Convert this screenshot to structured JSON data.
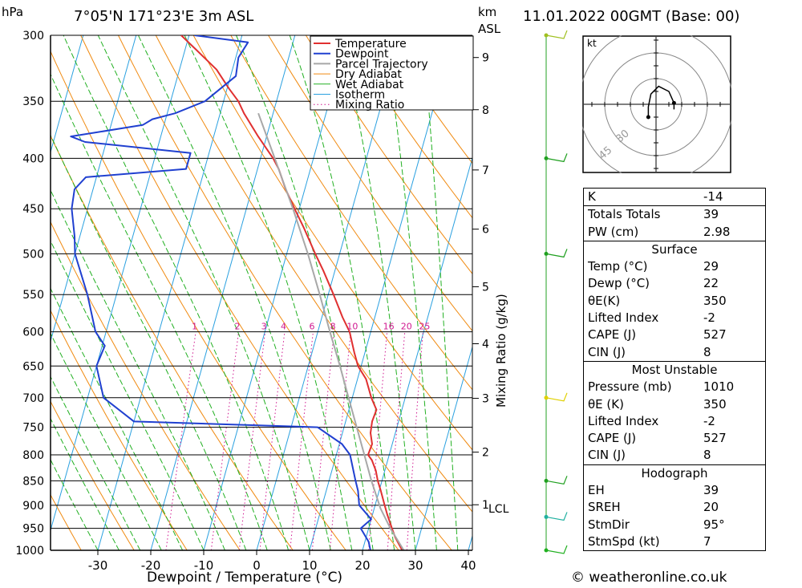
{
  "header": {
    "pressure_unit": "hPa",
    "location": "7°05'N 171°23'E 3m ASL",
    "height_unit_line1": "km",
    "height_unit_line2": "ASL",
    "datetime": "11.01.2022 00GMT (Base: 00)"
  },
  "chart_data": {
    "type": "line",
    "xlabel": "Dewpoint / Temperature (°C)",
    "ylabel": "hPa",
    "right_axis_label": "Mixing Ratio (g/kg)",
    "xlim": [
      -40,
      40
    ],
    "ylim": [
      1000,
      300
    ],
    "x_ticks": [
      "-30",
      "-20",
      "-10",
      "0",
      "10",
      "20",
      "30",
      "40"
    ],
    "pressure_levels": [
      300,
      350,
      400,
      450,
      500,
      550,
      600,
      650,
      700,
      750,
      800,
      850,
      900,
      950,
      1000
    ],
    "height_km": [
      {
        "label": "9",
        "p": 316
      },
      {
        "label": "8",
        "p": 357
      },
      {
        "label": "7",
        "p": 411
      },
      {
        "label": "6",
        "p": 472
      },
      {
        "label": "5",
        "p": 540
      },
      {
        "label": "4",
        "p": 617
      },
      {
        "label": "3",
        "p": 701
      },
      {
        "label": "2",
        "p": 795
      },
      {
        "label": "1",
        "p": 899
      }
    ],
    "lcl": {
      "label": "LCL",
      "p": 907
    },
    "mixing_ratio_labels": [
      "1",
      "2",
      "3",
      "4",
      "6",
      "8",
      "10",
      "16",
      "20",
      "25"
    ],
    "mixing_ratio_values": [
      1,
      2,
      3,
      4,
      6,
      8,
      10,
      16,
      20,
      25
    ],
    "legend": [
      "Temperature",
      "Dewpoint",
      "Parcel Trajectory",
      "Dry Adiabat",
      "Wet Adiabat",
      "Isotherm",
      "Mixing Ratio"
    ],
    "series": [
      {
        "name": "Temperature",
        "color": "#e03030",
        "points": [
          [
            1000,
            27.5
          ],
          [
            970,
            25.5
          ],
          [
            950,
            24.4
          ],
          [
            920,
            22.8
          ],
          [
            900,
            21.8
          ],
          [
            870,
            20.3
          ],
          [
            850,
            19.2
          ],
          [
            830,
            18.3
          ],
          [
            810,
            17.0
          ],
          [
            800,
            16.0
          ],
          [
            780,
            16.2
          ],
          [
            760,
            15.3
          ],
          [
            740,
            15.0
          ],
          [
            720,
            15.2
          ],
          [
            700,
            13.6
          ],
          [
            670,
            11.6
          ],
          [
            650,
            9.4
          ],
          [
            630,
            8.0
          ],
          [
            600,
            6.0
          ],
          [
            580,
            3.9
          ],
          [
            550,
            1.0
          ],
          [
            520,
            -2.2
          ],
          [
            500,
            -4.6
          ],
          [
            470,
            -8.2
          ],
          [
            450,
            -10.9
          ],
          [
            430,
            -13.6
          ],
          [
            410,
            -16.0
          ],
          [
            400,
            -17.6
          ],
          [
            380,
            -21.6
          ],
          [
            360,
            -25.5
          ],
          [
            350,
            -27.2
          ],
          [
            340,
            -29.6
          ],
          [
            325,
            -33.0
          ],
          [
            310,
            -38.0
          ],
          [
            300,
            -41.5
          ]
        ]
      },
      {
        "name": "Dewpoint",
        "color": "#2040d0",
        "points": [
          [
            1000,
            21.5
          ],
          [
            980,
            20.7
          ],
          [
            950,
            18.5
          ],
          [
            930,
            20.0
          ],
          [
            900,
            17.0
          ],
          [
            870,
            16.0
          ],
          [
            850,
            15.0
          ],
          [
            800,
            12.6
          ],
          [
            780,
            10.5
          ],
          [
            750,
            5.0
          ],
          [
            740,
            -30.0
          ],
          [
            700,
            -37.0
          ],
          [
            650,
            -40.0
          ],
          [
            620,
            -39.5
          ],
          [
            600,
            -42.0
          ],
          [
            550,
            -45.5
          ],
          [
            500,
            -50.0
          ],
          [
            480,
            -51.0
          ],
          [
            450,
            -53.0
          ],
          [
            430,
            -53.5
          ],
          [
            418,
            -52.0
          ],
          [
            410,
            -33.5
          ],
          [
            395,
            -33.5
          ],
          [
            385,
            -54.0
          ],
          [
            380,
            -57.0
          ],
          [
            370,
            -44.0
          ],
          [
            365,
            -42.5
          ],
          [
            360,
            -38.5
          ],
          [
            350,
            -33.5
          ],
          [
            330,
            -29.0
          ],
          [
            316,
            -29.5
          ],
          [
            305,
            -28.5
          ],
          [
            300,
            -39.0
          ]
        ]
      },
      {
        "name": "Parcel Trajectory",
        "color": "#a8a8a8",
        "points": [
          [
            1000,
            27.8
          ],
          [
            950,
            24.1
          ],
          [
            907,
            21.2
          ],
          [
            850,
            18.0
          ],
          [
            800,
            15.3
          ],
          [
            750,
            12.4
          ],
          [
            700,
            9.3
          ],
          [
            650,
            6.0
          ],
          [
            600,
            2.3
          ],
          [
            550,
            -1.6
          ],
          [
            500,
            -6.0
          ],
          [
            450,
            -11.2
          ],
          [
            400,
            -17.3
          ],
          [
            360,
            -22.8
          ]
        ]
      }
    ]
  },
  "hodograph": {
    "unit_label": "kt",
    "ring_labels": [
      "30",
      "45"
    ],
    "points_kt": [
      [
        7.0,
        -2.0
      ],
      [
        7.0,
        0.5
      ],
      [
        5.0,
        5.0
      ],
      [
        1.0,
        7.0
      ],
      [
        -2.0,
        4.0
      ],
      [
        -3.0,
        -1.0
      ],
      [
        -3.0,
        -5.0
      ]
    ]
  },
  "indices": {
    "top": [
      {
        "label": "K",
        "value": "-14"
      },
      {
        "label": "Totals Totals",
        "value": "39"
      },
      {
        "label": "PW (cm)",
        "value": "2.98"
      }
    ],
    "surface": {
      "title": "Surface",
      "rows": [
        {
          "label": "Temp (°C)",
          "value": "29"
        },
        {
          "label": "Dewp (°C)",
          "value": "22"
        },
        {
          "label": "θE(K)",
          "value": "350"
        },
        {
          "label": "Lifted Index",
          "value": "-2"
        },
        {
          "label": "CAPE (J)",
          "value": "527"
        },
        {
          "label": "CIN (J)",
          "value": "8"
        }
      ]
    },
    "most_unstable": {
      "title": "Most Unstable",
      "rows": [
        {
          "label": "Pressure (mb)",
          "value": "1010"
        },
        {
          "label": "θE (K)",
          "value": "350"
        },
        {
          "label": "Lifted Index",
          "value": "-2"
        },
        {
          "label": "CAPE (J)",
          "value": "527"
        },
        {
          "label": "CIN (J)",
          "value": "8"
        }
      ]
    },
    "hodograph": {
      "title": "Hodograph",
      "rows": [
        {
          "label": "EH",
          "value": "39"
        },
        {
          "label": "SREH",
          "value": "20"
        },
        {
          "label": "StmDir",
          "value": "95°"
        },
        {
          "label": "StmSpd (kt)",
          "value": "7"
        }
      ]
    }
  },
  "wind_profile": [
    {
      "p": 300,
      "color": "#a0c020"
    },
    {
      "p": 400,
      "color": "#20a020"
    },
    {
      "p": 500,
      "color": "#20a020"
    },
    {
      "p": 700,
      "color": "#e0d000"
    },
    {
      "p": 850,
      "color": "#20a020"
    },
    {
      "p": 925,
      "color": "#20b0a0"
    },
    {
      "p": 1000,
      "color": "#20b020"
    }
  ],
  "footer": "© weatheronline.co.uk"
}
